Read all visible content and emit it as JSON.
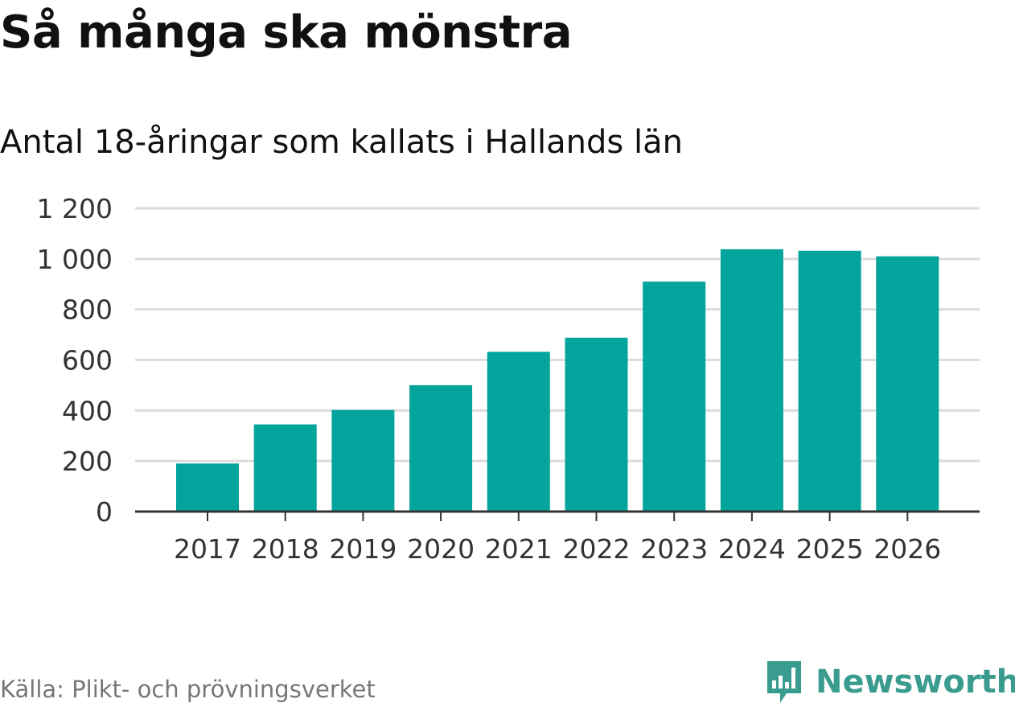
{
  "title": "Så många ska mönstra",
  "subtitle": "Antal 18-åringar som kallats i Hallands län",
  "source": "Källa: Plikt- och prövningsverket",
  "brand": {
    "name": "Newsworthy",
    "icon": "newsworthy-logo-icon",
    "color": "#3a9c8f"
  },
  "chart_data": {
    "type": "bar",
    "categories": [
      "2017",
      "2018",
      "2019",
      "2020",
      "2021",
      "2022",
      "2023",
      "2024",
      "2025",
      "2026"
    ],
    "values": [
      190,
      345,
      402,
      500,
      632,
      688,
      910,
      1038,
      1032,
      1010
    ],
    "yticks": [
      0,
      200,
      400,
      600,
      800,
      1000,
      1200
    ],
    "ytick_labels": [
      "0",
      "200",
      "400",
      "600",
      "800",
      "1 000",
      "1 200"
    ],
    "ylim": [
      0,
      1200
    ],
    "grid": true,
    "bar_color": "#02a49b",
    "gridline_color": "#dcdcdc",
    "axis_color": "#333333"
  }
}
